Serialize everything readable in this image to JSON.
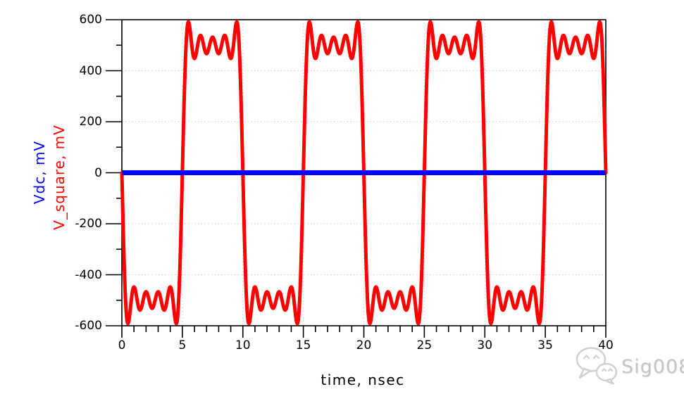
{
  "watermark": {
    "text": "Sig008",
    "icon": "wechat-icon"
  },
  "chart_data": {
    "type": "line",
    "title": "",
    "xlabel": "time, nsec",
    "xlim": [
      0,
      40
    ],
    "ylim": [
      -600,
      600
    ],
    "x_major_ticks": [
      0,
      5,
      10,
      15,
      20,
      25,
      30,
      35,
      40
    ],
    "x_minor_step": 1,
    "y_major_ticks": [
      600,
      400,
      200,
      0,
      -200,
      -400,
      -600
    ],
    "y_minor_step": 100,
    "grid": {
      "style": "dotted",
      "color": "#c8c8c8",
      "at_major_ticks": true
    },
    "axis_color": "#000000",
    "background": "#ffffff",
    "ylabels": [
      {
        "label": "Vdc, mV",
        "color": "#0000ff"
      },
      {
        "label": "V_square, mV",
        "color": "#ff0000"
      }
    ],
    "series": [
      {
        "name": "V_square, mV",
        "color": "#ff0000",
        "line_width": 5,
        "type": "fourier_square",
        "period_ns": 10,
        "amplitude_mV": 500,
        "harmonics": [
          1,
          3,
          5,
          7,
          9
        ],
        "start_polarity": "low",
        "low_half_periods_ns": [
          [
            0,
            5
          ],
          [
            10,
            15
          ],
          [
            20,
            25
          ],
          [
            30,
            35
          ]
        ],
        "high_half_periods_ns": [
          [
            5,
            10
          ],
          [
            15,
            20
          ],
          [
            25,
            30
          ],
          [
            35,
            40
          ]
        ],
        "plateau_mV": 500,
        "gibbs_overshoot_peak_mV": 591,
        "ripple_range_mV": [
          448,
          539
        ],
        "endpoints_mV": {
          "t0": 0,
          "t40": 0
        }
      },
      {
        "name": "Vdc, mV",
        "color": "#0000ff",
        "line_width": 7,
        "type": "constant",
        "value_mV": 0
      }
    ]
  }
}
